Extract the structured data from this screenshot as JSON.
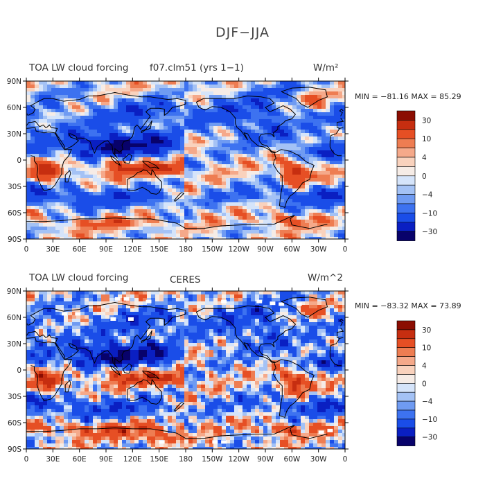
{
  "title": "DJF−JJA",
  "panels": [
    {
      "left_title": "TOA LW cloud forcing",
      "center_title": "f07.clm51 (yrs 1−1)",
      "units": "W/m²",
      "stats": "MIN = −81.16 MAX =  85.29",
      "colorbar_labels": [
        "30",
        "10",
        "4",
        "0",
        "−4",
        "−10",
        "−30"
      ],
      "missing_data": false
    },
    {
      "left_title": "TOA LW cloud forcing",
      "center_title": "CERES",
      "units": "W/m^2",
      "stats": "MIN = −83.32 MAX =  73.89",
      "colorbar_labels": [
        "30",
        "10",
        "4",
        "0",
        "−4",
        "−10",
        "−30"
      ],
      "missing_data": true
    }
  ],
  "lat_labels": [
    "90N",
    "60N",
    "30N",
    "0",
    "30S",
    "60S",
    "90S"
  ],
  "lon_labels": [
    "0",
    "30E",
    "60E",
    "90E",
    "120E",
    "150E",
    "180",
    "150W",
    "120W",
    "90W",
    "60W",
    "30W",
    "0"
  ],
  "colors": {
    "palette": [
      "#08026b",
      "#0a1fc2",
      "#1a4de8",
      "#3d72f0",
      "#6f9bf2",
      "#a4c2f5",
      "#d5e4fa",
      "#f6ece6",
      "#f9d2bd",
      "#f5a98a",
      "#ee7d52",
      "#e64f24",
      "#c62e10",
      "#8b0d02"
    ],
    "land": "#000000"
  }
}
